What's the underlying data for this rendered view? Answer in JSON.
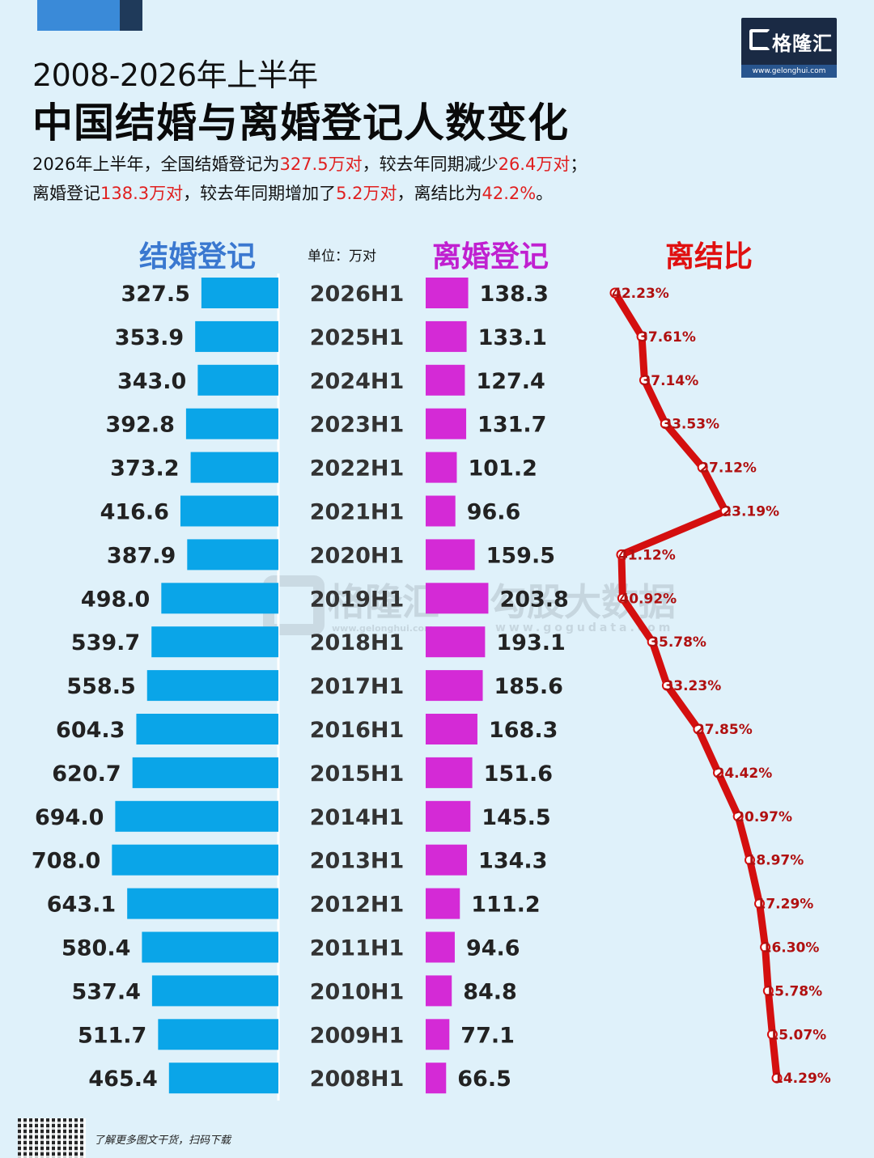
{
  "header": {
    "subtitle": "2008-2026年上半年",
    "title": "中国结婚与离婚登记人数变化",
    "summary_line1": [
      {
        "text": "2026年上半年，全国结婚登记为",
        "hl": false
      },
      {
        "text": "327.5万对",
        "hl": true
      },
      {
        "text": "，较去年同期减少",
        "hl": false
      },
      {
        "text": "26.4万对",
        "hl": true
      },
      {
        "text": "；",
        "hl": false
      }
    ],
    "summary_line2": [
      {
        "text": "离婚登记",
        "hl": false
      },
      {
        "text": "138.3万对",
        "hl": true
      },
      {
        "text": "，较去年同期增加了",
        "hl": false
      },
      {
        "text": "5.2万对",
        "hl": true
      },
      {
        "text": "，离结比为",
        "hl": false
      },
      {
        "text": "42.2%",
        "hl": true
      },
      {
        "text": "。",
        "hl": false
      }
    ]
  },
  "logo": {
    "name": "格隆汇",
    "url": "www.gelonghui.com"
  },
  "watermark": {
    "left_name": "格隆汇",
    "left_url": "www.gelonghui.com",
    "right_name": "勾股大数据",
    "right_url": "www.gogudata.com"
  },
  "footer": {
    "text": "了解更多图文干货，扫码下载"
  },
  "colors": {
    "marriage": "#0aa5e8",
    "divorce": "#d42ad6",
    "ratio": "#d40f0f",
    "marriage_head": "#3a78d0",
    "divorce_head": "#c020d0",
    "ratio_head": "#e01010"
  },
  "chart_data": {
    "type": "bar",
    "columns": {
      "marriage": "结婚登记",
      "divorce": "离婚登记",
      "ratio": "离结比"
    },
    "unit_label": "单位：万对",
    "categories": [
      "2026H1",
      "2025H1",
      "2024H1",
      "2023H1",
      "2022H1",
      "2021H1",
      "2020H1",
      "2019H1",
      "2018H1",
      "2017H1",
      "2016H1",
      "2015H1",
      "2014H1",
      "2013H1",
      "2012H1",
      "2011H1",
      "2010H1",
      "2009H1",
      "2008H1"
    ],
    "marriage_labels": [
      "327.5",
      "353.9",
      "343.0",
      "392.8",
      "373.2",
      "416.6",
      "387.9",
      "498.0",
      "539.7",
      "558.5",
      "604.3",
      "620.7",
      "694.0",
      "708.0",
      "643.1",
      "580.4",
      "537.4",
      "511.7",
      "465.4"
    ],
    "marriage": [
      327.5,
      353.9,
      343.0,
      392.8,
      373.2,
      416.6,
      387.9,
      498.0,
      539.7,
      558.5,
      604.3,
      620.7,
      694.0,
      708.0,
      643.1,
      580.4,
      537.4,
      511.7,
      465.4
    ],
    "divorce_labels": [
      "138.3",
      "133.1",
      "127.4",
      "131.7",
      "101.2",
      "96.6",
      "159.5",
      "203.8",
      "193.1",
      "185.6",
      "168.3",
      "151.6",
      "145.5",
      "134.3",
      "111.2",
      "94.6",
      "84.8",
      "77.1",
      "66.5"
    ],
    "divorce": [
      138.3,
      133.1,
      127.4,
      131.7,
      101.2,
      96.6,
      159.5,
      203.8,
      193.1,
      185.6,
      168.3,
      151.6,
      145.5,
      134.3,
      111.2,
      94.6,
      84.8,
      77.1,
      66.5
    ],
    "ratio_labels": [
      "42.23%",
      "37.61%",
      "37.14%",
      "33.53%",
      "27.12%",
      "23.19%",
      "41.12%",
      "40.92%",
      "35.78%",
      "33.23%",
      "27.85%",
      "24.42%",
      "20.97%",
      "18.97%",
      "17.29%",
      "16.30%",
      "15.78%",
      "15.07%",
      "14.29%"
    ],
    "ratio": [
      42.23,
      37.61,
      37.14,
      33.53,
      27.12,
      23.19,
      41.12,
      40.92,
      35.78,
      33.23,
      27.85,
      24.42,
      20.97,
      18.97,
      17.29,
      16.3,
      15.78,
      15.07,
      14.29
    ]
  }
}
